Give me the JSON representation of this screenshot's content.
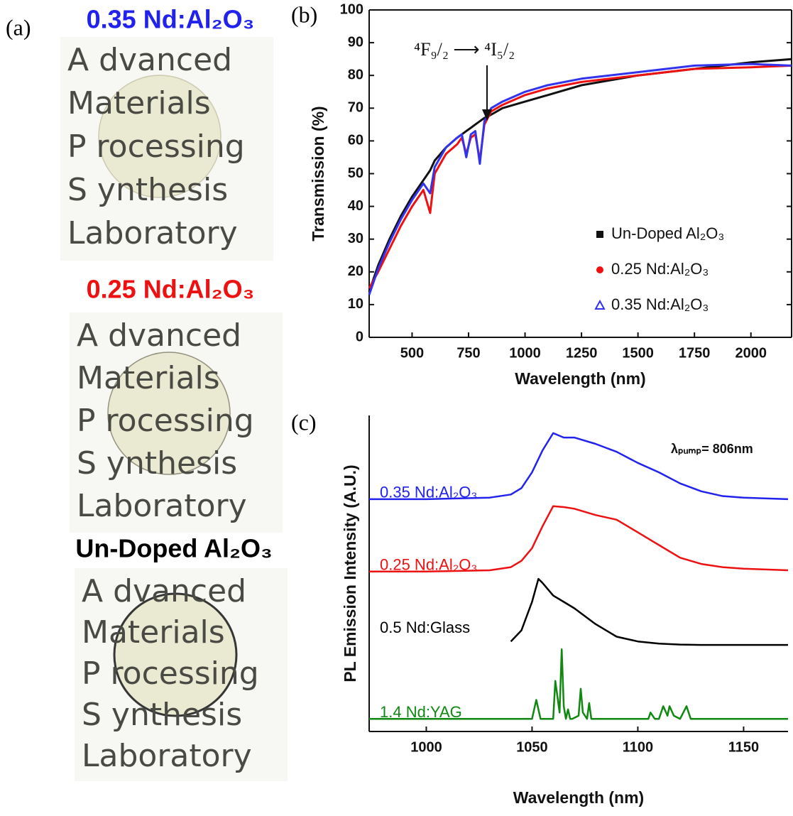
{
  "panel_labels": [
    "(a)",
    "(b)",
    "(c)"
  ],
  "photos": [
    {
      "title": "0.35 Nd:Al₂O₃",
      "color": "#2222ee",
      "lines": [
        "A dvanced",
        "Materials",
        "P rocessing",
        "S ynthesis",
        "Laboratory"
      ]
    },
    {
      "title": "0.25 Nd:Al₂O₃",
      "color": "#ee1111",
      "lines": [
        "A dvanced",
        "Materials",
        "P rocessing",
        "S ynthesis",
        "Laboratory"
      ]
    },
    {
      "title": "Un-Doped Al₂O₃",
      "color": "#000000",
      "lines": [
        "A dvanced",
        "Materials",
        "P rocessing",
        "S ynthesis",
        "Laboratory"
      ]
    }
  ],
  "chart_data": [
    {
      "type": "line",
      "xlabel": "Wavelength (nm)",
      "ylabel": "Transmission (%)",
      "annotation": "⁴F₉/₂ ⟶ ⁴I₅/₂",
      "xlim": [
        310,
        2180
      ],
      "ylim": [
        0,
        100
      ],
      "xticks": [
        500,
        750,
        1000,
        1250,
        1500,
        1750,
        2000
      ],
      "yticks": [
        0,
        10,
        20,
        30,
        40,
        50,
        60,
        70,
        80,
        90,
        100
      ],
      "legend": "lower right",
      "series": [
        {
          "name": "Un-Doped Al₂O₃",
          "color": "#111111",
          "marker": "square",
          "x": [
            310,
            350,
            400,
            450,
            500,
            550,
            580,
            600,
            650,
            700,
            720,
            740,
            760,
            780,
            800,
            820,
            850,
            900,
            1000,
            1100,
            1250,
            1500,
            1750,
            2000,
            2180
          ],
          "values": [
            14,
            22,
            30,
            37,
            43,
            48,
            51,
            54,
            58,
            61,
            62,
            63,
            64,
            65,
            66,
            67,
            68,
            70,
            72,
            74,
            77,
            80,
            82,
            84,
            85
          ]
        },
        {
          "name": "0.25 Nd:Al₂O₃",
          "color": "#ee1111",
          "marker": "circle",
          "x": [
            310,
            350,
            400,
            450,
            500,
            550,
            580,
            600,
            650,
            700,
            720,
            740,
            760,
            780,
            800,
            820,
            850,
            900,
            1000,
            1100,
            1250,
            1500,
            1750,
            2000,
            2180
          ],
          "values": [
            15,
            20,
            27,
            34,
            40,
            45,
            38,
            50,
            56,
            59,
            61,
            56,
            61,
            62,
            54,
            65,
            69,
            71,
            74,
            76,
            78,
            80,
            82,
            82.5,
            83
          ]
        },
        {
          "name": "0.35 Nd:Al₂O₃",
          "color": "#3333ee",
          "marker": "triangle",
          "x": [
            310,
            350,
            400,
            450,
            500,
            550,
            580,
            600,
            650,
            700,
            720,
            740,
            760,
            780,
            800,
            820,
            850,
            900,
            1000,
            1100,
            1250,
            1500,
            1750,
            2000,
            2180
          ],
          "values": [
            13,
            21,
            29,
            36,
            42,
            47,
            44,
            52,
            58,
            61,
            62,
            55,
            62,
            63,
            53,
            66,
            70,
            72,
            75,
            77,
            79,
            81,
            83,
            83.5,
            83
          ]
        }
      ]
    },
    {
      "type": "line",
      "xlabel": "Wavelength (nm)",
      "ylabel": "PL Emission Intensity (A.U.)",
      "annotation": "λₚᵤₘₚ= 806nm",
      "xlim": [
        973,
        1171
      ],
      "ylim": [
        0,
        100
      ],
      "xticks": [
        1000,
        1050,
        1100,
        1150
      ],
      "series": [
        {
          "name": "0.35 Nd:Al₂O₃",
          "color": "#2222ee",
          "x": [
            973,
            1000,
            1030,
            1040,
            1045,
            1050,
            1055,
            1060,
            1065,
            1070,
            1080,
            1090,
            1100,
            1110,
            1120,
            1130,
            1140,
            1150,
            1171
          ],
          "values": [
            73.5,
            73.5,
            74,
            75,
            77,
            82,
            89,
            94.4,
            93,
            93,
            91,
            88.5,
            85,
            82,
            78.5,
            76,
            74.5,
            74,
            73.5
          ]
        },
        {
          "name": "0.25 Nd:Al₂O₃",
          "color": "#ee1111",
          "x": [
            973,
            1000,
            1030,
            1040,
            1045,
            1050,
            1055,
            1060,
            1065,
            1070,
            1080,
            1090,
            1100,
            1110,
            1120,
            1130,
            1140,
            1150,
            1171
          ],
          "values": [
            50.6,
            50.6,
            51,
            52,
            54,
            58,
            65,
            71.3,
            71,
            70.5,
            68.5,
            67,
            63,
            59,
            55,
            53,
            52,
            51.5,
            51
          ]
        },
        {
          "name": "0.5 Nd:Glass",
          "color": "#000000",
          "x": [
            1040,
            1045,
            1050,
            1053,
            1055,
            1060,
            1065,
            1070,
            1080,
            1090,
            1100,
            1110,
            1120,
            1130,
            1140,
            1150,
            1171
          ],
          "values": [
            28.5,
            32,
            41,
            48.3,
            47,
            43,
            41,
            39,
            34,
            30,
            28.5,
            27.8,
            27.5,
            27.4,
            27.4,
            27.4,
            27.4
          ]
        },
        {
          "name": "1.4 Nd:YAG",
          "color": "#118811",
          "x": [
            973,
            1050,
            1052,
            1054,
            1060,
            1061,
            1062,
            1063,
            1064,
            1065,
            1066,
            1067,
            1068,
            1069,
            1072,
            1073,
            1074,
            1076,
            1077,
            1078,
            1080,
            1105,
            1106,
            1108,
            1110,
            1112,
            1114,
            1115,
            1117,
            1120,
            1123,
            1125,
            1171
          ],
          "values": [
            4,
            4,
            10,
            4,
            4,
            16,
            11,
            6,
            26,
            8,
            4,
            7,
            4,
            4,
            5,
            13.5,
            6,
            4,
            9,
            4,
            4,
            4,
            6,
            4,
            4,
            8,
            5,
            8,
            5,
            4,
            8,
            4,
            4
          ]
        }
      ]
    }
  ]
}
